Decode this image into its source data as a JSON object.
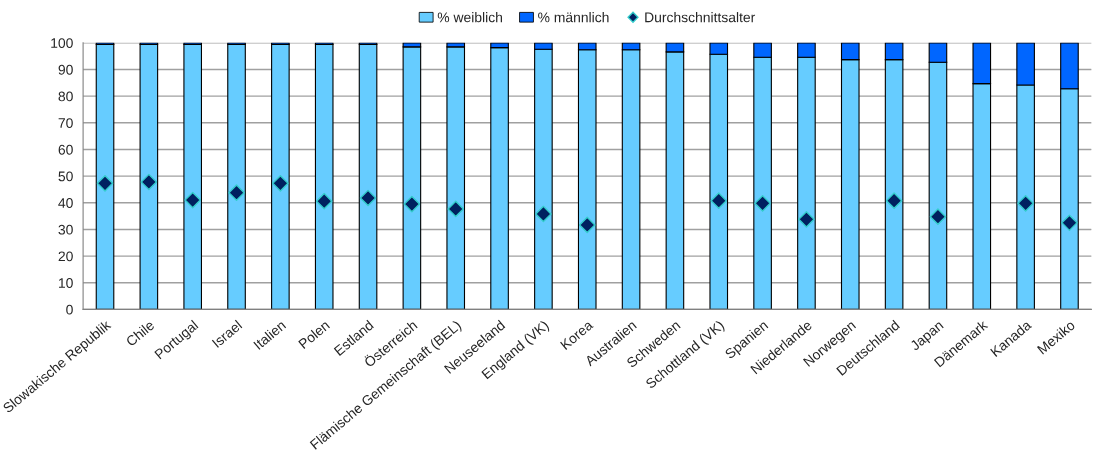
{
  "chart_data": {
    "type": "bar",
    "stacked": true,
    "categories": [
      "Slowakische Republik",
      "Chile",
      "Portugal",
      "Israel",
      "Italien",
      "Polen",
      "Estland",
      "Österreich",
      "Flämische Gemeinschaft (BEL)",
      "Neuseeland",
      "England (VK)",
      "Korea",
      "Australien",
      "Schweden",
      "Schottland (VK)",
      "Spanien",
      "Niederlande",
      "Norwegen",
      "Deutschland",
      "Japan",
      "Dänemark",
      "Kanada",
      "Mexiko"
    ],
    "series": [
      {
        "name": "% weiblich",
        "color": "#66ccff",
        "values": [
          99.4,
          99.4,
          99.4,
          99.4,
          99.4,
          99.4,
          99.4,
          98.5,
          98.5,
          98.2,
          97.6,
          97.4,
          97.4,
          96.6,
          95.7,
          94.6,
          94.6,
          93.7,
          93.7,
          92.7,
          84.7,
          84.2,
          82.8
        ]
      },
      {
        "name": "% männlich",
        "color": "#0066ff",
        "values": [
          0.6,
          0.6,
          0.6,
          0.6,
          0.6,
          0.6,
          0.6,
          1.5,
          1.5,
          1.8,
          2.4,
          2.6,
          2.6,
          3.4,
          4.3,
          5.4,
          5.4,
          6.3,
          6.3,
          7.3,
          15.3,
          15.8,
          17.2
        ]
      },
      {
        "name": "Durchschnittsalter",
        "type": "scatter",
        "color": "#002060",
        "values": [
          47.3,
          47.8,
          41,
          43.8,
          47.3,
          40.6,
          41.8,
          39.5,
          37.7,
          null,
          35.8,
          31.7,
          null,
          null,
          40.8,
          39.8,
          33.8,
          null,
          40.8,
          34.8,
          null,
          39.8,
          32.5
        ]
      }
    ],
    "ylim": [
      0,
      100
    ],
    "yticks": [
      0,
      10,
      20,
      30,
      40,
      50,
      60,
      70,
      80,
      90,
      100
    ],
    "grid": "y",
    "legend": "top",
    "marker": "diamond"
  }
}
